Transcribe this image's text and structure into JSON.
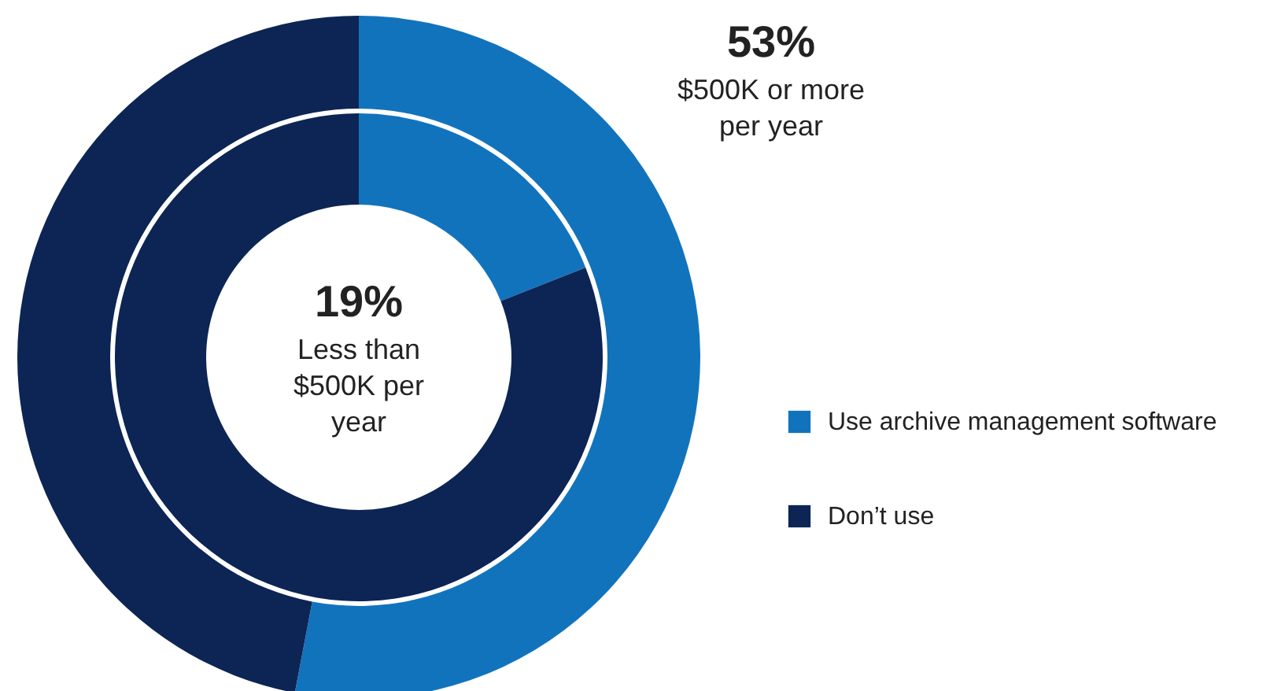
{
  "chart_data": [
    {
      "type": "donut",
      "categories": [
        "Use archive management software",
        "Don’t use"
      ],
      "colors": [
        "#1273bd",
        "#0c2554"
      ],
      "values": [
        53,
        47
      ],
      "value_labels": [
        "53%",
        null
      ],
      "annotations": [
        "$500K or more per year"
      ],
      "legend": "right"
    },
    {
      "type": "donut",
      "categories": [
        null,
        null
      ],
      "colors": [
        "#1273bd",
        "#0c2554"
      ],
      "values": [
        19,
        81
      ],
      "value_labels": [
        "19%",
        null
      ],
      "annotations": [
        "Less than $500K per year"
      ]
    }
  ]
}
